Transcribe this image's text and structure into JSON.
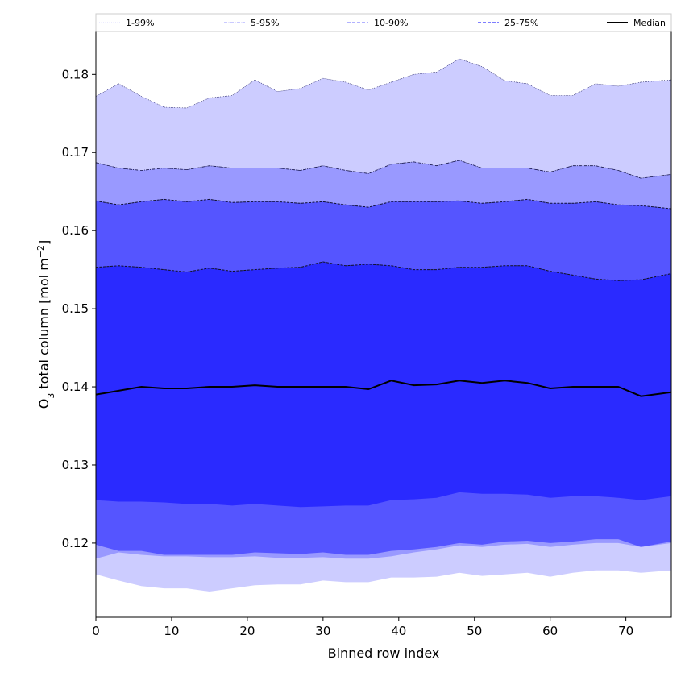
{
  "chart_data": {
    "type": "area",
    "xlabel": "Binned row index",
    "ylabel_main": "O",
    "ylabel_sub": "3",
    "ylabel_rest": " total column [mol m",
    "ylabel_sup": "−2",
    "ylabel_end": "]",
    "xlim": [
      0,
      76
    ],
    "ylim": [
      0.1105,
      0.1855
    ],
    "xticks": [
      0,
      10,
      20,
      30,
      40,
      50,
      60,
      70
    ],
    "xtick_labels": [
      "0",
      "10",
      "20",
      "30",
      "40",
      "50",
      "60",
      "70"
    ],
    "yticks": [
      0.12,
      0.13,
      0.14,
      0.15,
      0.16,
      0.17,
      0.18
    ],
    "ytick_labels": [
      "0.12",
      "0.13",
      "0.14",
      "0.15",
      "0.16",
      "0.17",
      "0.18"
    ],
    "legend": {
      "placement": "top",
      "entries": [
        {
          "label": "1-99%",
          "color": "#c8c8ff",
          "style": "dotted"
        },
        {
          "label": "5-95%",
          "color": "#9696ff",
          "style": "dashdot"
        },
        {
          "label": "10-90%",
          "color": "#6464ff",
          "style": "dashed"
        },
        {
          "label": "25-75%",
          "color": "#3232ff",
          "style": "dashed"
        },
        {
          "label": "Median",
          "color": "#000000",
          "style": "solid"
        }
      ]
    },
    "x": [
      0,
      3,
      6,
      9,
      12,
      15,
      18,
      21,
      24,
      27,
      30,
      33,
      36,
      39,
      42,
      45,
      48,
      51,
      54,
      57,
      60,
      63,
      66,
      69,
      72,
      76
    ],
    "bands": [
      {
        "name": "1-99%",
        "color": "#ccccff",
        "lower": [
          0.116,
          0.1152,
          0.1145,
          0.1142,
          0.1142,
          0.1138,
          0.1142,
          0.1146,
          0.1147,
          0.1147,
          0.1152,
          0.115,
          0.115,
          0.1156,
          0.1156,
          0.1157,
          0.1162,
          0.1158,
          0.116,
          0.1162,
          0.1157,
          0.1162,
          0.1165,
          0.1165,
          0.1162,
          0.1165
        ],
        "upper": [
          0.1772,
          0.1788,
          0.1772,
          0.1758,
          0.1757,
          0.177,
          0.1773,
          0.1793,
          0.1778,
          0.1782,
          0.1795,
          0.179,
          0.178,
          0.179,
          0.18,
          0.1803,
          0.182,
          0.181,
          0.1792,
          0.1788,
          0.1773,
          0.1773,
          0.1788,
          0.1785,
          0.179,
          0.1793
        ]
      },
      {
        "name": "5-95%",
        "color": "#9999ff",
        "lower": [
          0.118,
          0.1188,
          0.1185,
          0.1183,
          0.1183,
          0.1182,
          0.1182,
          0.1183,
          0.1181,
          0.1181,
          0.1182,
          0.118,
          0.118,
          0.1183,
          0.1188,
          0.1192,
          0.1197,
          0.1195,
          0.1198,
          0.1199,
          0.1195,
          0.1198,
          0.12,
          0.12,
          0.1195,
          0.12
        ]
      },
      {
        "name": "10-90%",
        "color": "#5555ff",
        "lower": [
          0.1198,
          0.119,
          0.119,
          0.1185,
          0.1185,
          0.1185,
          0.1185,
          0.1188,
          0.1187,
          0.1186,
          0.1188,
          0.1185,
          0.1185,
          0.119,
          0.1192,
          0.1195,
          0.12,
          0.1198,
          0.1202,
          0.1203,
          0.12,
          0.1202,
          0.1205,
          0.1205,
          0.1195,
          0.1202
        ]
      },
      {
        "name": "25-75%",
        "color": "#2a2aff",
        "lower": [
          0.1255,
          0.1253,
          0.1253,
          0.1252,
          0.125,
          0.125,
          0.1248,
          0.125,
          0.1248,
          0.1246,
          0.1247,
          0.1248,
          0.1248,
          0.1255,
          0.1256,
          0.1258,
          0.1265,
          0.1263,
          0.1263,
          0.1262,
          0.1258,
          0.126,
          0.126,
          0.1258,
          0.1255,
          0.126
        ],
        "upper": [
          0.1553,
          0.1555,
          0.1553,
          0.155,
          0.1547,
          0.1552,
          0.1548,
          0.155,
          0.1552,
          0.1553,
          0.156,
          0.1555,
          0.1557,
          0.1555,
          0.155,
          0.155,
          0.1553,
          0.1553,
          0.1555,
          0.1555,
          0.1548,
          0.1543,
          0.1538,
          0.1536,
          0.1537,
          0.1545
        ]
      }
    ],
    "band_edges_5_95_upper": [
      0.1687,
      0.168,
      0.1677,
      0.168,
      0.1678,
      0.1683,
      0.168,
      0.168,
      0.168,
      0.1677,
      0.1683,
      0.1677,
      0.1673,
      0.1685,
      0.1688,
      0.1683,
      0.169,
      0.168,
      0.168,
      0.168,
      0.1675,
      0.1683,
      0.1683,
      0.1677,
      0.1667,
      0.1672
    ],
    "band_edges_10_90_upper": [
      0.1638,
      0.1633,
      0.1637,
      0.164,
      0.1637,
      0.164,
      0.1636,
      0.1637,
      0.1637,
      0.1635,
      0.1637,
      0.1633,
      0.163,
      0.1637,
      0.1637,
      0.1637,
      0.1638,
      0.1635,
      0.1637,
      0.164,
      0.1635,
      0.1635,
      0.1637,
      0.1633,
      0.1632,
      0.1628
    ],
    "median": [
      0.139,
      0.1395,
      0.14,
      0.1398,
      0.1398,
      0.14,
      0.14,
      0.1402,
      0.14,
      0.14,
      0.14,
      0.14,
      0.1397,
      0.1408,
      0.1402,
      0.1403,
      0.1408,
      0.1405,
      0.1408,
      0.1405,
      0.1398,
      0.14,
      0.14,
      0.14,
      0.1388,
      0.1393
    ]
  }
}
